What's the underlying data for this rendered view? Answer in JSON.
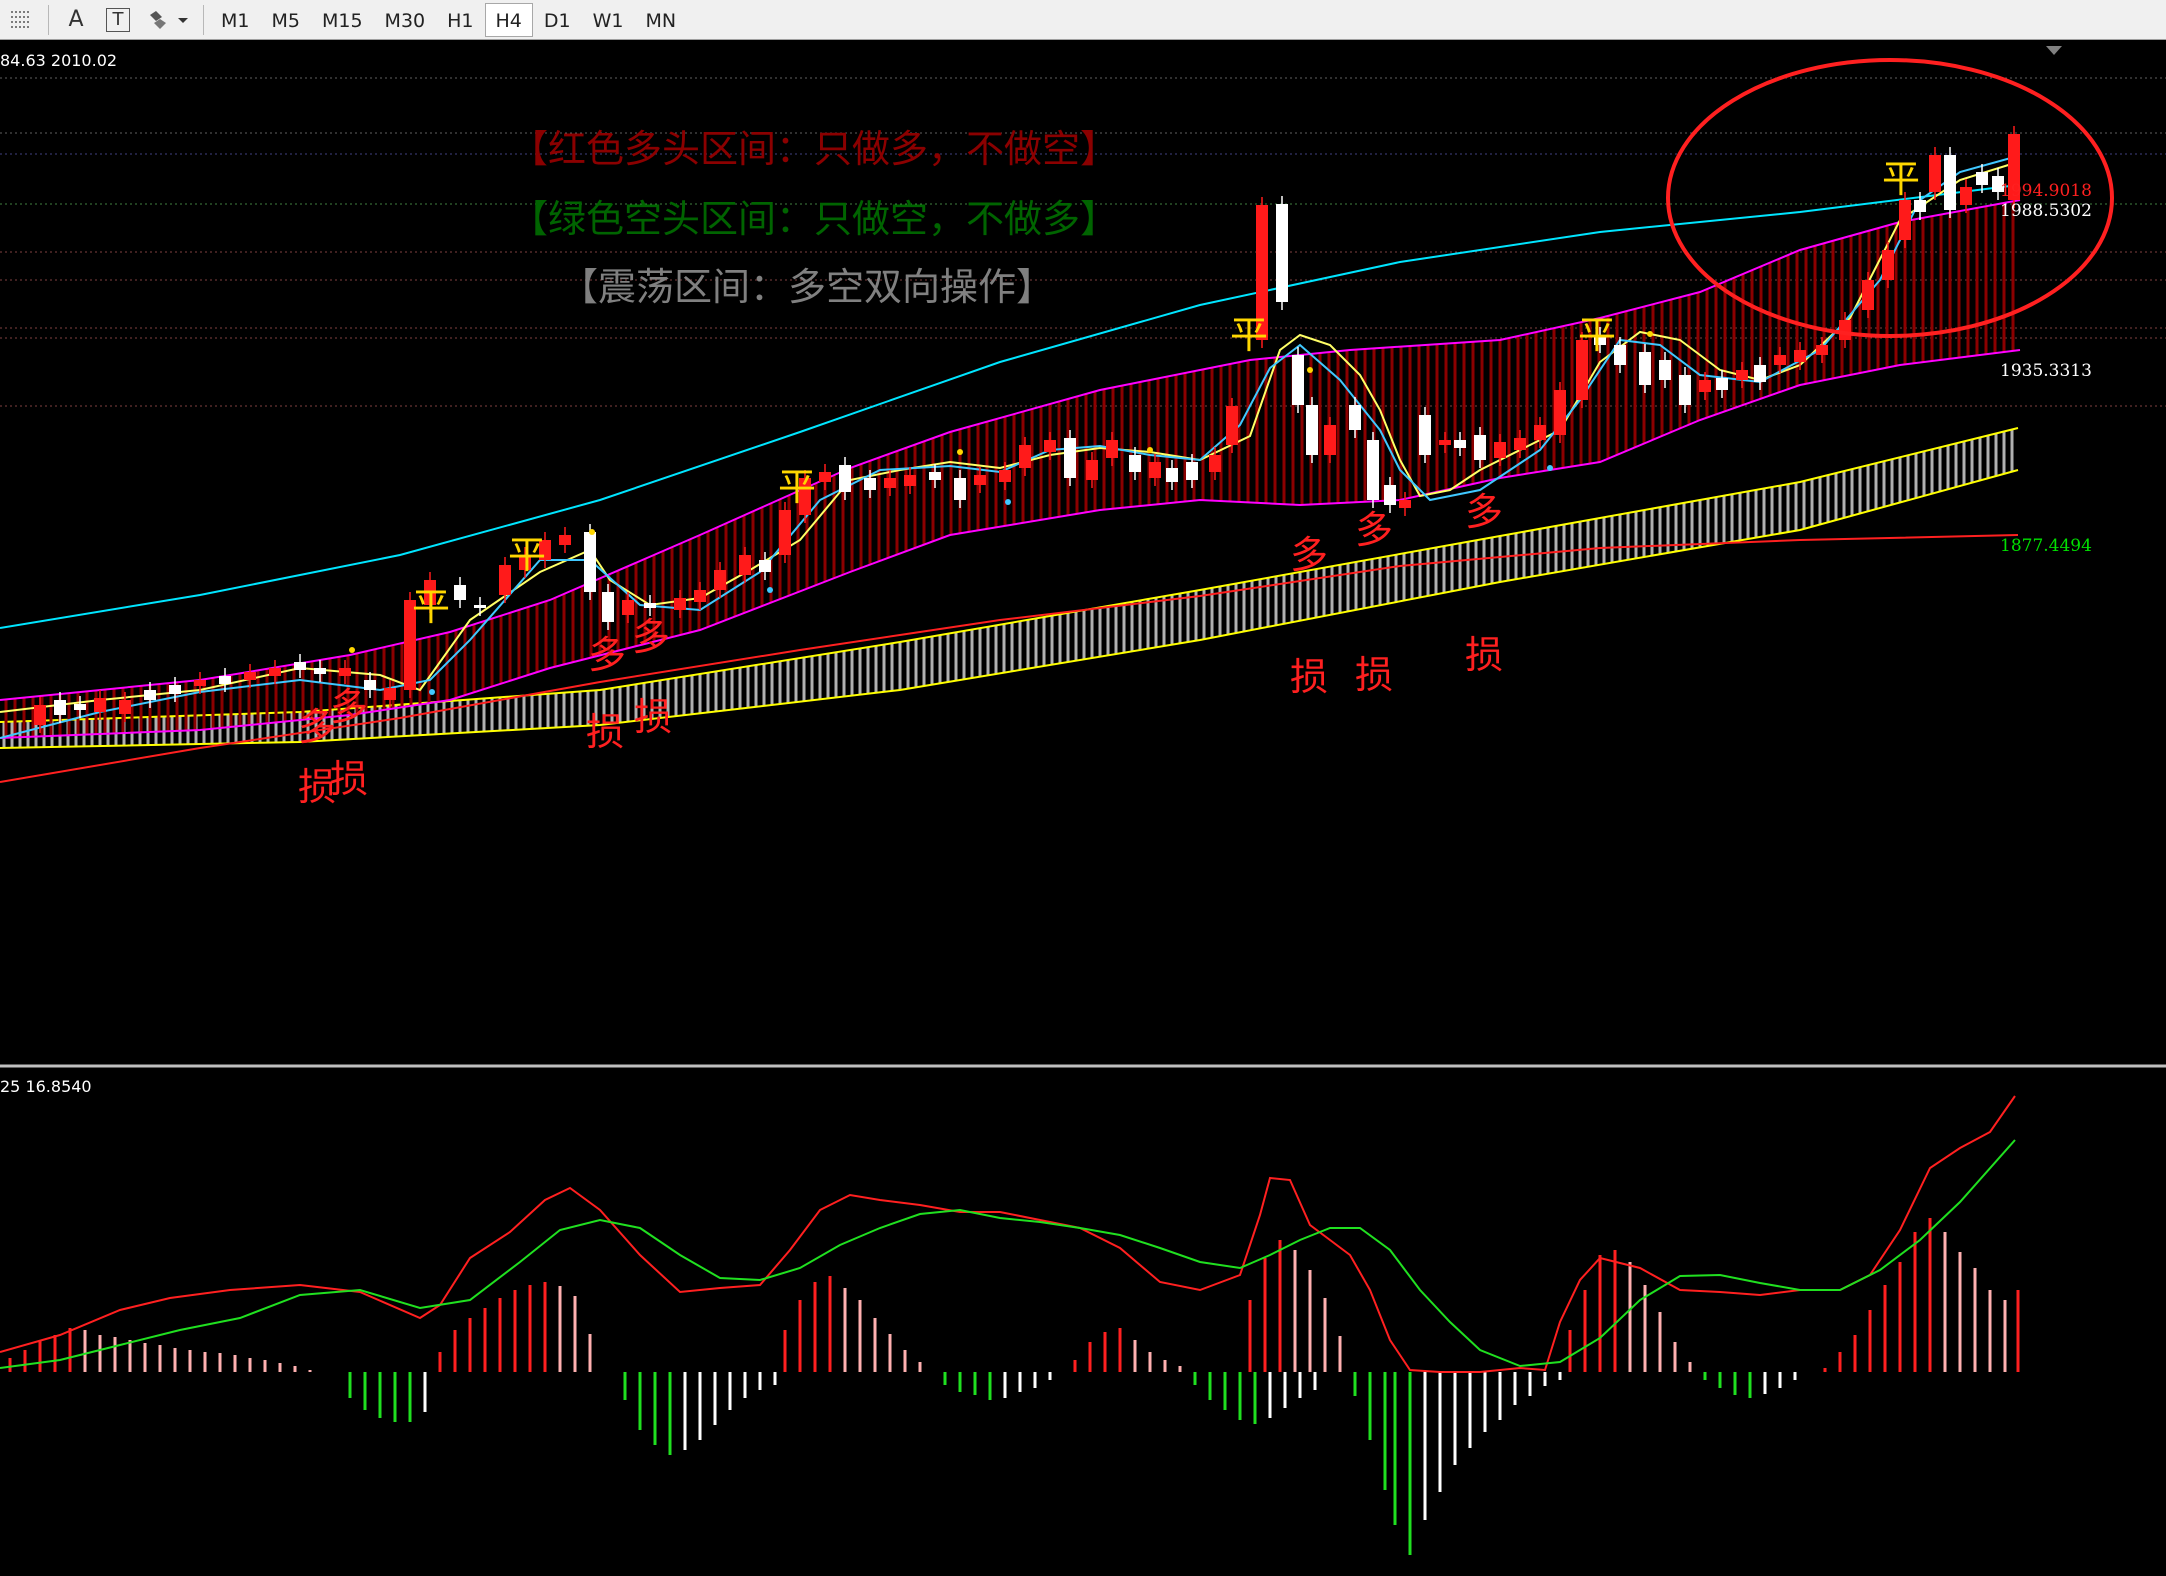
{
  "toolbar": {
    "icons": [
      "crosshair-lines-icon",
      "text-a-icon",
      "text-label-icon",
      "shapes-dropdown-icon"
    ],
    "text_icon_glyph": "A",
    "label_icon_glyph": "T",
    "timeframes": [
      "M1",
      "M5",
      "M15",
      "M30",
      "H1",
      "H4",
      "D1",
      "W1",
      "MN"
    ],
    "active_timeframe": "H4"
  },
  "main_chart": {
    "info_text": "84.63 2010.02",
    "legend_bull": "【红色多头区间：只做多，不做空】",
    "legend_bear": "【绿色空头区间：只做空，不做多】",
    "legend_range": "【震荡区间：多空双向操作】",
    "price_labels": [
      {
        "text": "1994.9018",
        "color": "#ff2020"
      },
      {
        "text": "1988.5302",
        "color": "#ffffff"
      },
      {
        "text": "1935.3313",
        "color": "#ffffff"
      },
      {
        "text": "1877.4494",
        "color": "#00e000"
      }
    ],
    "annotations": {
      "ping": "平",
      "duo": "多",
      "sun": "损"
    },
    "colors": {
      "bull_candle": "#ff1a1a",
      "bear_candle": "#ffffff",
      "band": "#ff00ff",
      "ema_fast": "#ffff66",
      "ema_slow": "#40c8ff",
      "long_ma_top": "#00e5ff",
      "ribbon": "#b0b0b0",
      "ribbon_border": "#ffff00",
      "long_ma_red": "#ff2020",
      "circle": "#ff2020"
    }
  },
  "sub_chart": {
    "info_text": "25 16.8540",
    "colors": {
      "line_fast": "#ff2020",
      "line_slow": "#20e020",
      "hist_up_strong": "#ff2020",
      "hist_up_weak": "#ffb0b0",
      "hist_down_strong": "#20e020",
      "hist_down_weak": "#ffffff"
    }
  }
}
